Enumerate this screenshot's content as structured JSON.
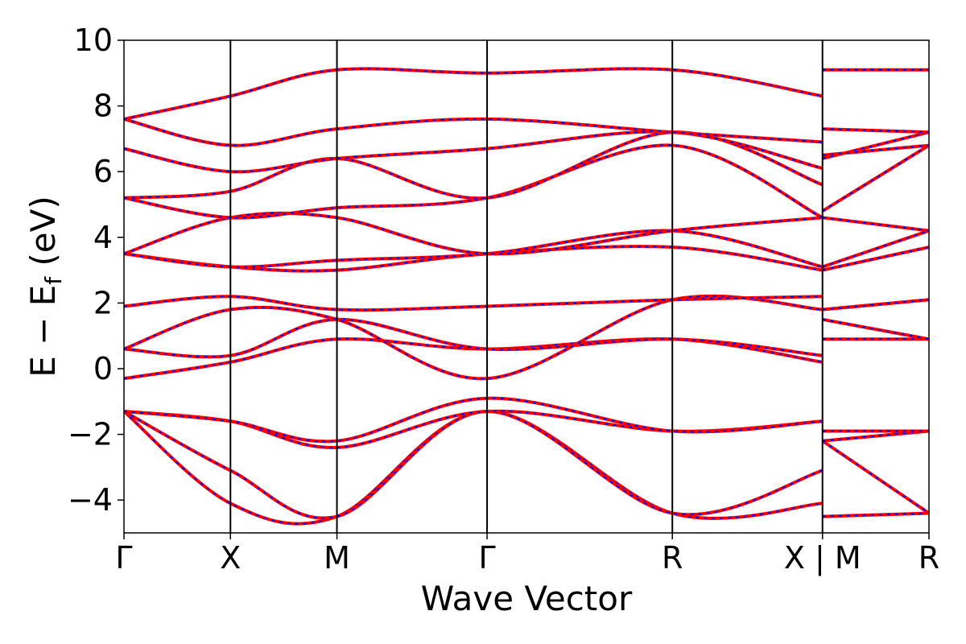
{
  "chart_data": {
    "type": "line",
    "xlabel": "Wave Vector",
    "ylabel_main": "E − E",
    "ylabel_sub": "f",
    "ylabel_unit": " (eV)",
    "ylim": [
      -5,
      10
    ],
    "yticks": [
      -4,
      -2,
      0,
      2,
      4,
      6,
      8,
      10
    ],
    "ytick_labels": [
      "−4",
      "−2",
      "0",
      "2",
      "4",
      "6",
      "8",
      "10"
    ],
    "xlim": [
      0,
      7.56
    ],
    "kpoints": [
      {
        "x": 0.0,
        "label": "Γ"
      },
      {
        "x": 1.0,
        "label": "X"
      },
      {
        "x": 2.0,
        "label": "M"
      },
      {
        "x": 3.41,
        "label": "Γ"
      },
      {
        "x": 5.15,
        "label": "R"
      },
      {
        "x": 6.56,
        "label": "X | M"
      },
      {
        "x": 7.56,
        "label": "R"
      }
    ],
    "colors": {
      "series_a": "#ff0000",
      "series_b": "#0000ff"
    },
    "bands": [
      {
        "x": [
          0,
          1,
          2,
          3.41,
          5.15,
          6.56
        ],
        "y": [
          -1.3,
          -4.1,
          -4.5,
          -1.3,
          -4.4,
          -4.1
        ]
      },
      {
        "x": [
          6.56,
          7.56
        ],
        "y": [
          -4.5,
          -4.4
        ]
      },
      {
        "x": [
          0,
          1,
          2,
          3.41,
          5.15,
          6.56
        ],
        "y": [
          -1.3,
          -3.1,
          -4.5,
          -1.3,
          -4.4,
          -3.1
        ]
      },
      {
        "x": [
          6.56,
          7.56
        ],
        "y": [
          -2.2,
          -4.4
        ]
      },
      {
        "x": [
          0,
          1,
          2,
          3.41,
          5.15,
          6.56
        ],
        "y": [
          -1.3,
          -1.6,
          -2.4,
          -1.3,
          -1.9,
          -1.6
        ]
      },
      {
        "x": [
          6.56,
          7.56
        ],
        "y": [
          -2.2,
          -1.9
        ]
      },
      {
        "x": [
          0,
          1,
          2,
          3.41,
          5.15,
          6.56
        ],
        "y": [
          -1.3,
          -1.6,
          -2.2,
          -0.9,
          -1.9,
          -1.6
        ]
      },
      {
        "x": [
          6.56,
          7.56
        ],
        "y": [
          -1.9,
          -1.9
        ]
      },
      {
        "x": [
          0,
          1,
          2,
          3.41,
          5.15,
          6.56
        ],
        "y": [
          -0.3,
          0.2,
          0.9,
          0.6,
          0.9,
          0.2
        ]
      },
      {
        "x": [
          6.56,
          7.56
        ],
        "y": [
          0.9,
          0.9
        ]
      },
      {
        "x": [
          0,
          1,
          2,
          3.41,
          5.15,
          6.56
        ],
        "y": [
          0.6,
          0.4,
          1.5,
          0.6,
          0.9,
          0.4
        ]
      },
      {
        "x": [
          6.56,
          7.56
        ],
        "y": [
          1.5,
          0.9
        ]
      },
      {
        "x": [
          0,
          1,
          2,
          3.41,
          5.15,
          6.56
        ],
        "y": [
          0.6,
          1.8,
          1.5,
          -0.3,
          2.1,
          1.8
        ]
      },
      {
        "x": [
          6.56,
          7.56
        ],
        "y": [
          1.8,
          2.1
        ]
      },
      {
        "x": [
          0,
          1,
          2,
          3.41,
          5.15,
          6.56
        ],
        "y": [
          1.9,
          2.2,
          1.8,
          1.9,
          2.1,
          2.2
        ]
      },
      {
        "x": [
          6.56,
          7.56
        ],
        "y": [
          1.8,
          2.1
        ]
      },
      {
        "x": [
          0,
          1,
          2,
          3.41,
          5.15,
          6.56
        ],
        "y": [
          3.5,
          3.1,
          3.0,
          3.5,
          3.7,
          3.0
        ]
      },
      {
        "x": [
          6.56,
          7.56
        ],
        "y": [
          3.0,
          3.7
        ]
      },
      {
        "x": [
          0,
          1,
          2,
          3.41,
          5.15,
          6.56
        ],
        "y": [
          3.5,
          3.1,
          3.3,
          3.5,
          4.2,
          3.1
        ]
      },
      {
        "x": [
          6.56,
          7.56
        ],
        "y": [
          3.1,
          4.2
        ]
      },
      {
        "x": [
          0,
          1,
          2,
          3.41,
          5.15,
          6.56
        ],
        "y": [
          3.5,
          4.6,
          4.6,
          3.5,
          4.2,
          4.6
        ]
      },
      {
        "x": [
          6.56,
          7.56
        ],
        "y": [
          4.6,
          4.2
        ]
      },
      {
        "x": [
          0,
          1,
          2,
          3.41,
          5.15,
          6.56
        ],
        "y": [
          5.2,
          4.6,
          4.9,
          5.2,
          6.8,
          4.6
        ]
      },
      {
        "x": [
          6.56,
          7.56
        ],
        "y": [
          4.8,
          6.8
        ]
      },
      {
        "x": [
          0,
          1,
          2,
          3.41,
          5.15,
          6.56
        ],
        "y": [
          5.2,
          5.4,
          6.4,
          5.2,
          7.2,
          5.6
        ]
      },
      {
        "x": [
          6.56,
          7.56
        ],
        "y": [
          6.4,
          7.2
        ]
      },
      {
        "x": [
          0,
          1,
          2,
          3.41,
          5.15,
          6.56
        ],
        "y": [
          6.7,
          6.0,
          6.4,
          6.7,
          7.2,
          6.1
        ]
      },
      {
        "x": [
          6.56,
          7.56
        ],
        "y": [
          6.5,
          6.8
        ]
      },
      {
        "x": [
          0,
          1,
          2,
          3.41,
          5.15,
          6.56
        ],
        "y": [
          7.6,
          6.8,
          7.3,
          7.6,
          7.2,
          6.9
        ]
      },
      {
        "x": [
          6.56,
          7.56
        ],
        "y": [
          7.3,
          7.2
        ]
      },
      {
        "x": [
          0,
          1,
          2,
          3.41,
          5.15,
          6.56
        ],
        "y": [
          7.6,
          8.3,
          9.1,
          9.0,
          9.1,
          8.3
        ]
      },
      {
        "x": [
          6.56,
          7.56
        ],
        "y": [
          9.1,
          9.1
        ]
      }
    ]
  }
}
